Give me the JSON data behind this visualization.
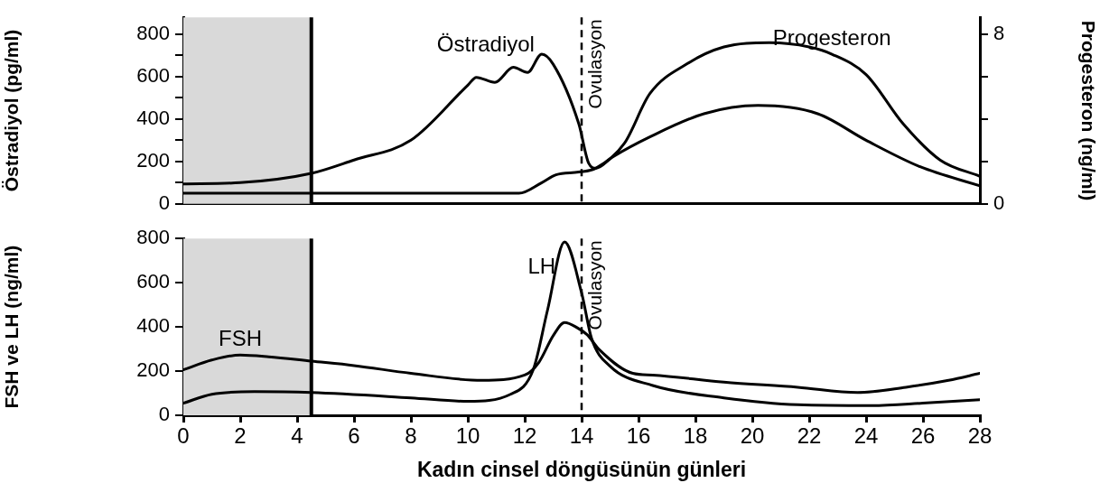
{
  "chart_data": [
    {
      "type": "line",
      "ylabel": "Östradiyol (pg/ml)",
      "y2label": "Progesteron (ng/ml)",
      "xlim": [
        0,
        28
      ],
      "ylim": [
        0,
        880
      ],
      "yticks": [
        0,
        {
          "value": 100,
          "label": null
        },
        200,
        {
          "value": 300,
          "label": null
        },
        400,
        {
          "value": 500,
          "label": null
        },
        600,
        {
          "value": 700,
          "label": null
        },
        800
      ],
      "y2lim": [
        0,
        8.8
      ],
      "y2ticks": [
        0,
        {
          "value": 2,
          "label": null
        },
        {
          "value": 4,
          "label": null
        },
        {
          "value": 6,
          "label": null
        },
        8
      ],
      "tick_labels": "y",
      "grid": false,
      "legend": false,
      "marker": "none",
      "line_style": "solid",
      "series": [
        {
          "name": "Östradiyol",
          "color": "#000000",
          "x": [
            0,
            2,
            4.5,
            6,
            8,
            10,
            10.3,
            10.95,
            11.6,
            12.1,
            12.6,
            13,
            13.9,
            14.25,
            14.5,
            15.1,
            16.4,
            18.3,
            20.2,
            22.3,
            24,
            25.9,
            28
          ],
          "values": [
            94,
            100,
            144,
            207,
            300,
            560,
            597,
            573,
            644,
            620,
            706,
            659,
            378,
            191,
            168,
            222,
            316,
            425,
            464,
            425,
            300,
            175,
            85
          ]
        },
        {
          "name": "Progesteron",
          "color": "#000000",
          "axis": "y2",
          "x": [
            0,
            11.8,
            12.6,
            13.1,
            13.9,
            14.5,
            15.5,
            16.4,
            17.7,
            19,
            20.6,
            22,
            22.8,
            24,
            25.3,
            26.6,
            28
          ],
          "values": [
            0.5,
            0.5,
            1.0,
            1.37,
            1.5,
            1.68,
            2.85,
            5.2,
            6.6,
            7.4,
            7.6,
            7.4,
            7.06,
            6.1,
            3.78,
            2.07,
            1.3
          ]
        }
      ],
      "bands": [
        {
          "axis": "x",
          "from": 0,
          "to": 4.5,
          "color": "#d9d9d9"
        }
      ],
      "ref_lines": [
        {
          "axis": "x",
          "value": 4.5,
          "color": "#000000",
          "line_style": "solid"
        },
        {
          "axis": "x",
          "value": 14,
          "label": "Ovulasyon",
          "color": "#000000",
          "line_style": "dashed"
        }
      ]
    },
    {
      "type": "line",
      "ylabel": "FSH ve LH (ng/ml)",
      "xlabel": "Kadın cinsel döngüsünün günleri",
      "xlim": [
        0,
        28
      ],
      "xticks": [
        0,
        2,
        4,
        6,
        8,
        10,
        12,
        14,
        16,
        18,
        20,
        22,
        24,
        26,
        28
      ],
      "ylim": [
        0,
        800
      ],
      "yticks": [
        0,
        200,
        400,
        600,
        800
      ],
      "grid": false,
      "legend": false,
      "marker": "none",
      "line_style": "solid",
      "series": [
        {
          "name": "FSH",
          "color": "#000000",
          "x": [
            0,
            1,
            2,
            3,
            4.5,
            6,
            8,
            10.5,
            12,
            12.5,
            13,
            13.4,
            13.85,
            14.2,
            14.6,
            15.8,
            16.5,
            19,
            21.6,
            23.7,
            25.4,
            26.9,
            28
          ],
          "values": [
            206,
            250,
            273,
            265,
            245,
            225,
            190,
            158,
            182,
            240,
            360,
            420,
            396,
            364,
            300,
            190,
            182,
            150,
            127,
            103,
            127,
            158,
            190
          ]
        },
        {
          "name": "LH",
          "color": "#000000",
          "x": [
            0,
            1,
            2.5,
            4.5,
            8,
            10,
            11.5,
            12.3,
            12.8,
            13.4,
            14,
            14.35,
            15,
            16.5,
            19,
            21.6,
            24.2,
            26,
            28
          ],
          "values": [
            55,
            95,
            107,
            103,
            79,
            63,
            95,
            206,
            475,
            784,
            554,
            348,
            222,
            135,
            79,
            48,
            44,
            55,
            71
          ]
        }
      ],
      "bands": [
        {
          "axis": "x",
          "from": 0,
          "to": 4.5,
          "color": "#d9d9d9"
        }
      ],
      "ref_lines": [
        {
          "axis": "x",
          "value": 4.5,
          "color": "#000000",
          "line_style": "solid"
        },
        {
          "axis": "x",
          "value": 14,
          "label": "Ovulasyon",
          "color": "#000000",
          "line_style": "dashed"
        }
      ]
    }
  ]
}
